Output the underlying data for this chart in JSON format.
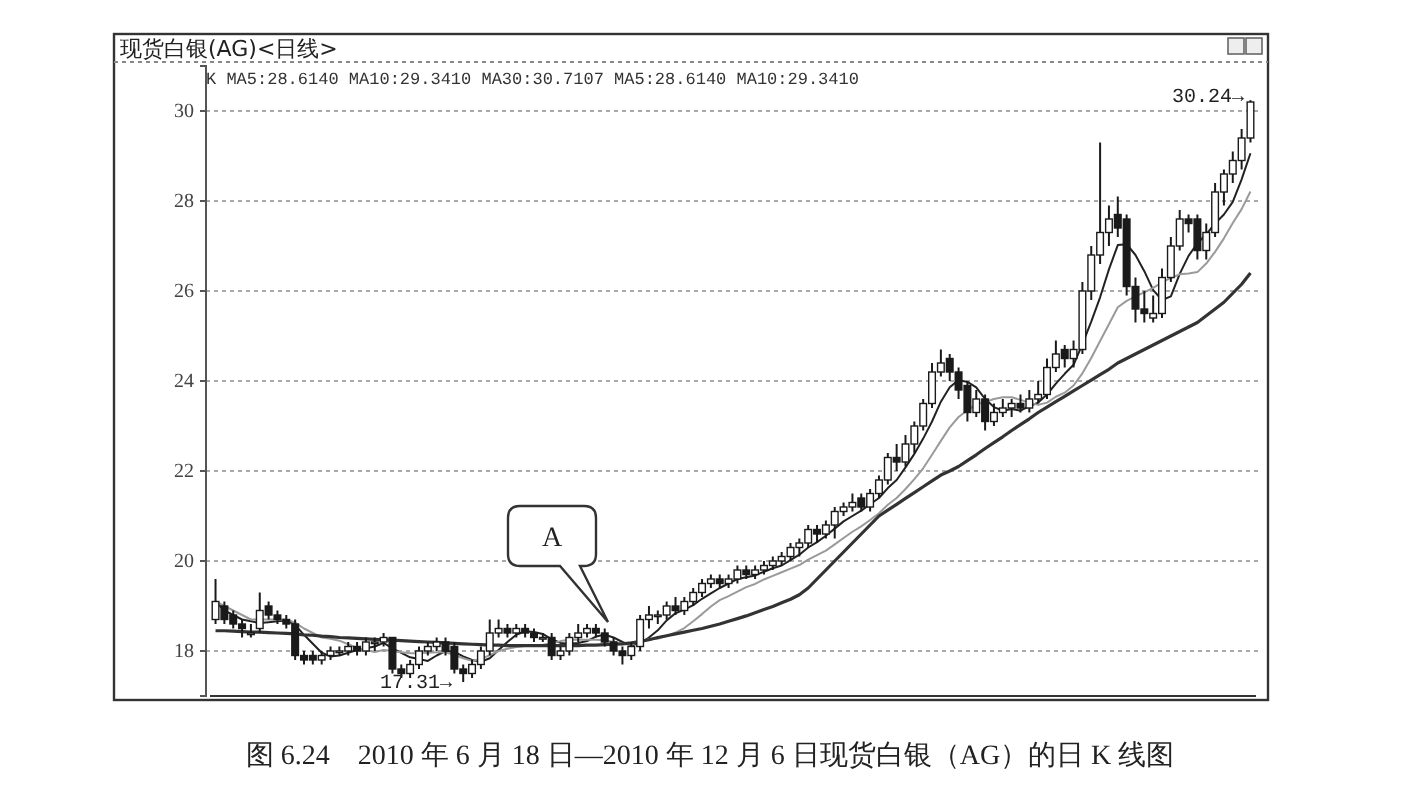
{
  "chart_data": {
    "type": "candlestick",
    "title": "现货白银(AG)<日线>",
    "subtitle": "K MA5:28.6140 MA10:29.3410 MA30:30.7107 MA5:28.6140 MA10:29.3410",
    "categories": [
      null,
      null,
      null,
      null,
      null,
      null,
      null,
      null,
      null,
      null,
      null,
      null,
      null,
      null,
      null,
      null,
      null,
      null,
      null,
      null,
      null,
      null,
      null,
      null,
      null,
      null,
      null,
      null,
      null,
      null,
      null,
      null,
      null,
      null,
      null,
      null,
      null,
      null,
      null,
      null,
      null,
      null,
      null,
      null,
      null,
      null,
      null,
      null,
      null,
      null,
      null,
      null,
      null,
      null,
      null,
      null,
      null,
      null,
      null,
      null,
      null,
      null,
      null,
      null,
      null,
      null,
      null,
      null,
      null,
      null,
      null,
      null,
      null,
      null,
      null,
      null,
      null,
      null,
      null,
      null,
      null,
      null,
      null,
      null,
      null,
      null,
      null,
      null,
      null,
      null,
      null,
      null,
      null,
      null,
      null,
      null,
      null,
      null,
      null,
      null,
      null,
      null,
      null,
      null,
      null,
      null,
      null,
      null,
      null,
      null,
      null,
      null,
      null,
      null,
      null,
      null,
      null,
      null
    ],
    "color": "#1a1a1a",
    "ohlc": [
      [
        18.7,
        19.6,
        18.6,
        19.1
      ],
      [
        19.0,
        19.1,
        18.6,
        18.7
      ],
      [
        18.8,
        18.9,
        18.5,
        18.6
      ],
      [
        18.6,
        18.7,
        18.3,
        18.5
      ],
      [
        18.4,
        18.6,
        18.3,
        18.4
      ],
      [
        18.5,
        19.3,
        18.4,
        18.9
      ],
      [
        19.0,
        19.1,
        18.7,
        18.8
      ],
      [
        18.8,
        18.9,
        18.6,
        18.7
      ],
      [
        18.7,
        18.8,
        18.5,
        18.6
      ],
      [
        18.6,
        18.7,
        17.8,
        17.9
      ],
      [
        17.9,
        18.0,
        17.7,
        17.8
      ],
      [
        17.9,
        18.0,
        17.7,
        17.8
      ],
      [
        17.8,
        18.0,
        17.7,
        17.9
      ],
      [
        17.9,
        18.1,
        17.8,
        18.0
      ],
      [
        18.0,
        18.1,
        17.9,
        18.0
      ],
      [
        18.0,
        18.2,
        17.9,
        18.1
      ],
      [
        18.1,
        18.2,
        17.9,
        18.0
      ],
      [
        18.0,
        18.3,
        17.9,
        18.2
      ],
      [
        18.2,
        18.3,
        18.0,
        18.2
      ],
      [
        18.2,
        18.4,
        18.1,
        18.3
      ],
      [
        18.3,
        18.3,
        17.5,
        17.6
      ],
      [
        17.6,
        17.7,
        17.4,
        17.5
      ],
      [
        17.5,
        17.8,
        17.4,
        17.7
      ],
      [
        17.7,
        18.1,
        17.6,
        18.0
      ],
      [
        18.0,
        18.2,
        17.9,
        18.1
      ],
      [
        18.1,
        18.3,
        18.0,
        18.2
      ],
      [
        18.2,
        18.3,
        17.9,
        18.0
      ],
      [
        18.1,
        18.2,
        17.5,
        17.6
      ],
      [
        17.6,
        17.7,
        17.31,
        17.5
      ],
      [
        17.5,
        17.8,
        17.4,
        17.7
      ],
      [
        17.7,
        18.1,
        17.6,
        18.0
      ],
      [
        18.0,
        18.7,
        17.9,
        18.4
      ],
      [
        18.4,
        18.7,
        18.3,
        18.5
      ],
      [
        18.5,
        18.6,
        18.3,
        18.4
      ],
      [
        18.4,
        18.6,
        18.3,
        18.5
      ],
      [
        18.5,
        18.6,
        18.3,
        18.4
      ],
      [
        18.4,
        18.5,
        18.2,
        18.3
      ],
      [
        18.3,
        18.4,
        18.2,
        18.3
      ],
      [
        18.3,
        18.4,
        17.8,
        17.9
      ],
      [
        17.9,
        18.1,
        17.8,
        18.0
      ],
      [
        18.0,
        18.4,
        17.9,
        18.3
      ],
      [
        18.3,
        18.6,
        18.2,
        18.4
      ],
      [
        18.4,
        18.6,
        18.3,
        18.5
      ],
      [
        18.5,
        18.6,
        18.3,
        18.4
      ],
      [
        18.4,
        18.5,
        18.1,
        18.2
      ],
      [
        18.2,
        18.3,
        17.9,
        18.0
      ],
      [
        18.0,
        18.1,
        17.7,
        17.9
      ],
      [
        17.9,
        18.2,
        17.8,
        18.1
      ],
      [
        18.1,
        18.8,
        18.0,
        18.7
      ],
      [
        18.7,
        19.0,
        18.5,
        18.8
      ],
      [
        18.8,
        18.9,
        18.6,
        18.8
      ],
      [
        18.8,
        19.1,
        18.7,
        19.0
      ],
      [
        19.0,
        19.2,
        18.8,
        18.9
      ],
      [
        18.9,
        19.2,
        18.8,
        19.1
      ],
      [
        19.1,
        19.4,
        19.0,
        19.3
      ],
      [
        19.3,
        19.6,
        19.2,
        19.5
      ],
      [
        19.5,
        19.7,
        19.4,
        19.6
      ],
      [
        19.6,
        19.7,
        19.4,
        19.5
      ],
      [
        19.5,
        19.7,
        19.4,
        19.6
      ],
      [
        19.6,
        19.9,
        19.5,
        19.8
      ],
      [
        19.8,
        19.9,
        19.6,
        19.7
      ],
      [
        19.7,
        19.9,
        19.6,
        19.8
      ],
      [
        19.8,
        20.0,
        19.7,
        19.9
      ],
      [
        19.9,
        20.1,
        19.8,
        20.0
      ],
      [
        20.0,
        20.2,
        19.9,
        20.1
      ],
      [
        20.1,
        20.4,
        20.0,
        20.3
      ],
      [
        20.3,
        20.5,
        20.1,
        20.4
      ],
      [
        20.4,
        20.8,
        20.3,
        20.7
      ],
      [
        20.7,
        20.8,
        20.4,
        20.6
      ],
      [
        20.6,
        20.9,
        20.5,
        20.8
      ],
      [
        20.8,
        21.2,
        20.5,
        21.1
      ],
      [
        21.1,
        21.3,
        21.0,
        21.2
      ],
      [
        21.2,
        21.5,
        21.1,
        21.3
      ],
      [
        21.4,
        21.5,
        21.1,
        21.2
      ],
      [
        21.2,
        21.6,
        21.1,
        21.5
      ],
      [
        21.5,
        21.9,
        21.4,
        21.8
      ],
      [
        21.8,
        22.4,
        21.7,
        22.3
      ],
      [
        22.3,
        22.6,
        22.0,
        22.2
      ],
      [
        22.2,
        22.8,
        22.1,
        22.6
      ],
      [
        22.6,
        23.1,
        22.4,
        23.0
      ],
      [
        23.0,
        23.6,
        22.9,
        23.5
      ],
      [
        23.5,
        24.4,
        23.4,
        24.2
      ],
      [
        24.2,
        24.7,
        24.1,
        24.4
      ],
      [
        24.5,
        24.6,
        24.0,
        24.2
      ],
      [
        24.2,
        24.3,
        23.6,
        23.8
      ],
      [
        23.9,
        24.0,
        23.1,
        23.3
      ],
      [
        23.3,
        23.8,
        23.2,
        23.6
      ],
      [
        23.6,
        23.7,
        22.9,
        23.1
      ],
      [
        23.1,
        23.5,
        23.0,
        23.3
      ],
      [
        23.3,
        23.6,
        23.2,
        23.4
      ],
      [
        23.4,
        23.6,
        23.2,
        23.5
      ],
      [
        23.5,
        23.7,
        23.3,
        23.4
      ],
      [
        23.4,
        23.8,
        23.3,
        23.6
      ],
      [
        23.6,
        24.0,
        23.5,
        23.7
      ],
      [
        23.7,
        24.5,
        23.6,
        24.3
      ],
      [
        24.3,
        24.9,
        24.2,
        24.6
      ],
      [
        24.7,
        24.8,
        24.3,
        24.5
      ],
      [
        24.5,
        24.9,
        24.3,
        24.7
      ],
      [
        24.7,
        26.2,
        24.6,
        26.0
      ],
      [
        26.0,
        27.0,
        25.8,
        26.8
      ],
      [
        26.8,
        29.3,
        26.6,
        27.3
      ],
      [
        27.3,
        27.9,
        27.0,
        27.6
      ],
      [
        27.7,
        28.1,
        27.2,
        27.4
      ],
      [
        27.6,
        27.7,
        25.9,
        26.1
      ],
      [
        26.1,
        26.3,
        25.3,
        25.6
      ],
      [
        25.6,
        26.0,
        25.3,
        25.5
      ],
      [
        25.4,
        25.9,
        25.3,
        25.5
      ],
      [
        25.5,
        26.5,
        25.4,
        26.3
      ],
      [
        26.3,
        27.2,
        26.2,
        27.0
      ],
      [
        27.0,
        27.8,
        26.9,
        27.6
      ],
      [
        27.6,
        27.7,
        27.3,
        27.5
      ],
      [
        27.6,
        27.7,
        26.7,
        26.9
      ],
      [
        26.9,
        27.5,
        26.7,
        27.3
      ],
      [
        27.3,
        28.4,
        27.2,
        28.2
      ],
      [
        28.2,
        28.7,
        27.9,
        28.6
      ],
      [
        28.6,
        29.1,
        28.4,
        28.9
      ],
      [
        28.9,
        29.6,
        28.7,
        29.4
      ],
      [
        29.4,
        30.24,
        29.3,
        30.2
      ]
    ],
    "series": [
      {
        "type": "line",
        "color": "#222222",
        "values": [
          19.1,
          18.9,
          18.8,
          18.7,
          18.66,
          18.62,
          18.64,
          18.66,
          18.68,
          18.58,
          18.36,
          18.16,
          17.96,
          17.88,
          17.9,
          17.96,
          18.02,
          18.06,
          18.1,
          18.18,
          18.06,
          17.96,
          17.86,
          17.82,
          17.78,
          17.9,
          18.0,
          17.98,
          17.88,
          17.8,
          17.76,
          17.84,
          18.02,
          18.2,
          18.36,
          18.44,
          18.42,
          18.38,
          18.26,
          18.18,
          18.16,
          18.18,
          18.22,
          18.32,
          18.36,
          18.3,
          18.2,
          18.12,
          18.18,
          18.3,
          18.46,
          18.68,
          18.84,
          18.92,
          19.02,
          19.16,
          19.28,
          19.4,
          19.5,
          19.6,
          19.64,
          19.68,
          19.76,
          19.84,
          19.9,
          20.02,
          20.14,
          20.3,
          20.42,
          20.56,
          20.72,
          20.88,
          21.0,
          21.12,
          21.26,
          21.4,
          21.62,
          21.8,
          22.08,
          22.38,
          22.72,
          23.1,
          23.54,
          23.86,
          24.02,
          23.98,
          23.86,
          23.6,
          23.42,
          23.34,
          23.38,
          23.34,
          23.44,
          23.52,
          23.7,
          23.94,
          24.16,
          24.36,
          24.82,
          25.32,
          25.86,
          26.48,
          27.02,
          27.04,
          26.8,
          26.44,
          26.02,
          25.8,
          25.88,
          26.38,
          26.78,
          27.06,
          27.26,
          27.5,
          27.7,
          27.98,
          28.48,
          29.06
        ]
      },
      {
        "type": "line",
        "color": "#9a9a9a",
        "values": [
          19.1,
          19.0,
          18.9,
          18.8,
          18.7,
          18.7,
          18.7,
          18.7,
          18.7,
          18.63,
          18.5,
          18.4,
          18.3,
          18.27,
          18.23,
          18.15,
          18.07,
          18.02,
          17.98,
          18.02,
          18.0,
          17.97,
          17.95,
          17.95,
          17.96,
          17.97,
          17.97,
          17.91,
          17.84,
          17.78,
          17.82,
          17.91,
          18.0,
          18.05,
          18.09,
          18.11,
          18.13,
          18.14,
          18.17,
          18.22,
          18.25,
          18.25,
          18.25,
          18.25,
          18.24,
          18.2,
          18.16,
          18.14,
          18.22,
          18.26,
          18.27,
          18.33,
          18.41,
          18.51,
          18.66,
          18.82,
          18.99,
          19.13,
          19.22,
          19.32,
          19.42,
          19.49,
          19.59,
          19.67,
          19.75,
          19.83,
          19.91,
          20.03,
          20.13,
          20.23,
          20.37,
          20.51,
          20.65,
          20.77,
          20.91,
          21.06,
          21.25,
          21.4,
          21.6,
          21.82,
          22.06,
          22.36,
          22.67,
          22.97,
          23.2,
          23.35,
          23.48,
          23.53,
          23.6,
          23.64,
          23.64,
          23.58,
          23.52,
          23.47,
          23.52,
          23.65,
          23.74,
          23.9,
          24.17,
          24.51,
          24.89,
          25.26,
          25.64,
          25.78,
          25.88,
          25.97,
          26.07,
          26.19,
          26.29,
          26.37,
          26.39,
          26.42,
          26.61,
          26.87,
          27.17,
          27.51,
          27.82,
          28.21
        ]
      },
      {
        "type": "line",
        "color": "#333333",
        "values": [
          18.45,
          18.45,
          18.44,
          18.43,
          18.42,
          18.42,
          18.41,
          18.4,
          18.39,
          18.38,
          18.36,
          18.35,
          18.33,
          18.32,
          18.3,
          18.29,
          18.28,
          18.27,
          18.26,
          18.25,
          18.24,
          18.23,
          18.22,
          18.21,
          18.2,
          18.19,
          18.18,
          18.17,
          18.16,
          18.15,
          18.14,
          18.13,
          18.13,
          18.12,
          18.12,
          18.12,
          18.12,
          18.12,
          18.12,
          18.12,
          18.12,
          18.12,
          18.13,
          18.13,
          18.14,
          18.15,
          18.16,
          18.18,
          18.21,
          18.25,
          18.3,
          18.34,
          18.38,
          18.42,
          18.46,
          18.5,
          18.55,
          18.6,
          18.66,
          18.72,
          18.78,
          18.85,
          18.92,
          18.99,
          19.07,
          19.15,
          19.25,
          19.4,
          19.6,
          19.8,
          20.0,
          20.2,
          20.4,
          20.6,
          20.8,
          21.0,
          21.13,
          21.26,
          21.39,
          21.52,
          21.65,
          21.78,
          21.91,
          22.0,
          22.1,
          22.23,
          22.36,
          22.5,
          22.63,
          22.76,
          22.9,
          23.03,
          23.16,
          23.3,
          23.42,
          23.54,
          23.66,
          23.78,
          23.9,
          24.02,
          24.14,
          24.26,
          24.4,
          24.5,
          24.6,
          24.7,
          24.8,
          24.9,
          25.0,
          25.1,
          25.2,
          25.3,
          25.45,
          25.6,
          25.75,
          25.95,
          26.15,
          26.4
        ]
      }
    ],
    "ylim": [
      17,
      31
    ],
    "yticks": [
      18,
      20,
      22,
      24,
      26,
      28,
      30
    ],
    "grid": "y",
    "tick_labels": "y",
    "annotations": [
      "17.31→",
      "30.24→",
      "A",
      "图 6.24　2010 年 6 月 18 日—2010 年 12 月 6 日现货白银（AG）的日 K 线图"
    ]
  }
}
